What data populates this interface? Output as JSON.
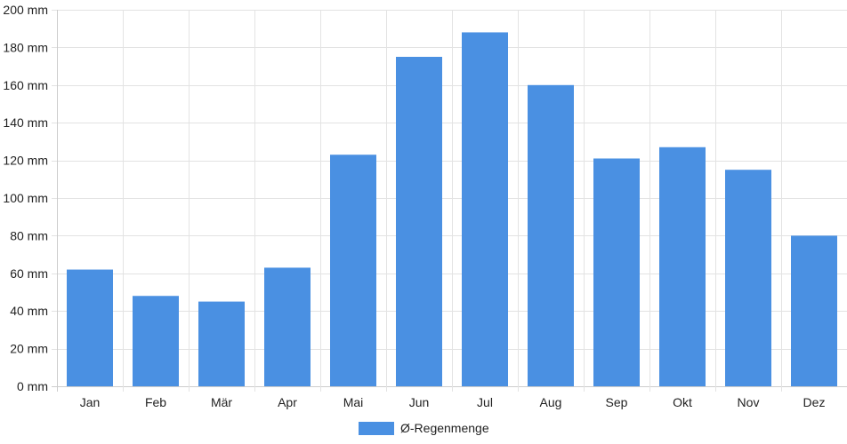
{
  "chart_data": {
    "type": "bar",
    "categories": [
      "Jan",
      "Feb",
      "Mär",
      "Apr",
      "Mai",
      "Jun",
      "Jul",
      "Aug",
      "Sep",
      "Okt",
      "Nov",
      "Dez"
    ],
    "series": [
      {
        "name": "Ø-Regenmenge",
        "values": [
          62,
          48,
          45,
          63,
          123,
          175,
          188,
          160,
          121,
          127,
          115,
          80
        ],
        "color": "#4a90e2"
      }
    ],
    "y_ticks": [
      "0 mm",
      "20 mm",
      "40 mm",
      "60 mm",
      "80 mm",
      "100 mm",
      "120 mm",
      "140 mm",
      "160 mm",
      "180 mm",
      "200 mm"
    ],
    "ylim": [
      0,
      200
    ],
    "grid": true,
    "legend_position": "bottom-center",
    "title": "",
    "xlabel": "",
    "ylabel": ""
  }
}
